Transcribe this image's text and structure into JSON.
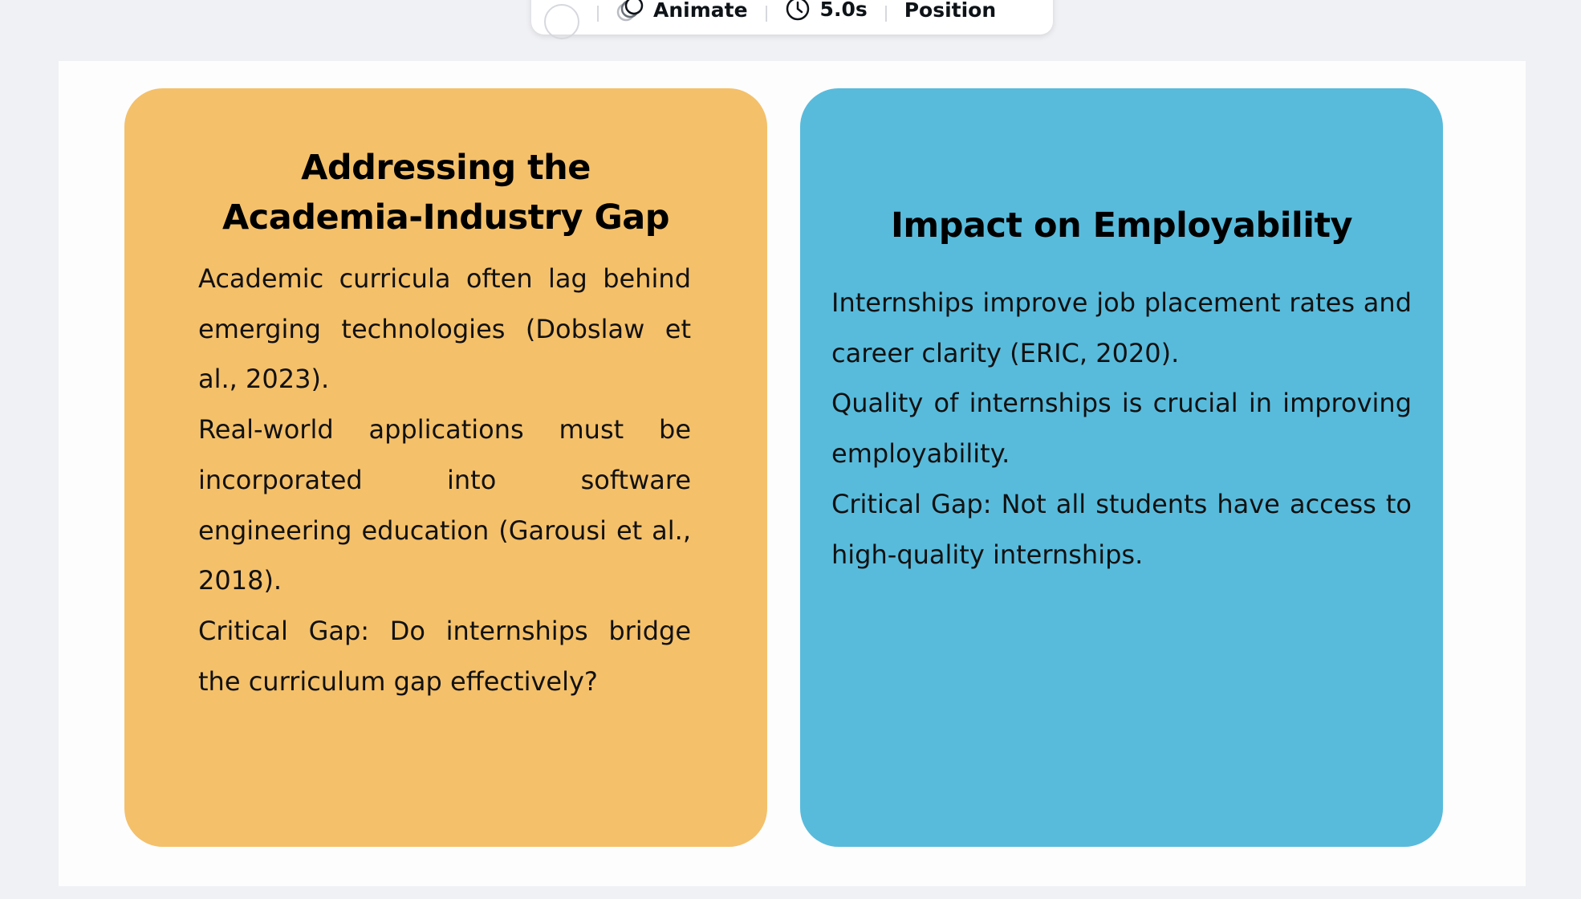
{
  "toolbar": {
    "animate_label": "Animate",
    "duration_label": "5.0s",
    "position_label": "Position"
  },
  "slide": {
    "left_card": {
      "title_line1": "Addressing the",
      "title_line2": "Academia-Industry Gap",
      "paragraphs": [
        "Academic curricula often lag behind emerging technologies (Dobslaw et al., 2023).",
        "Real-world applications must be incorporated into software engineering education (Garousi et al., 2018).",
        "Critical Gap: Do internships bridge the curriculum gap effectively?"
      ]
    },
    "right_card": {
      "title": "Impact on Employability",
      "paragraphs": [
        "Internships improve job placement rates and career clarity (ERIC, 2020).",
        "Quality of internships is crucial in improving employability.",
        "Critical Gap: Not all students have access to high-quality internships."
      ]
    }
  },
  "colors": {
    "left_card_bg": "#f4c06a",
    "right_card_bg": "#58bbdc",
    "canvas_bg": "#f0f1f5"
  }
}
